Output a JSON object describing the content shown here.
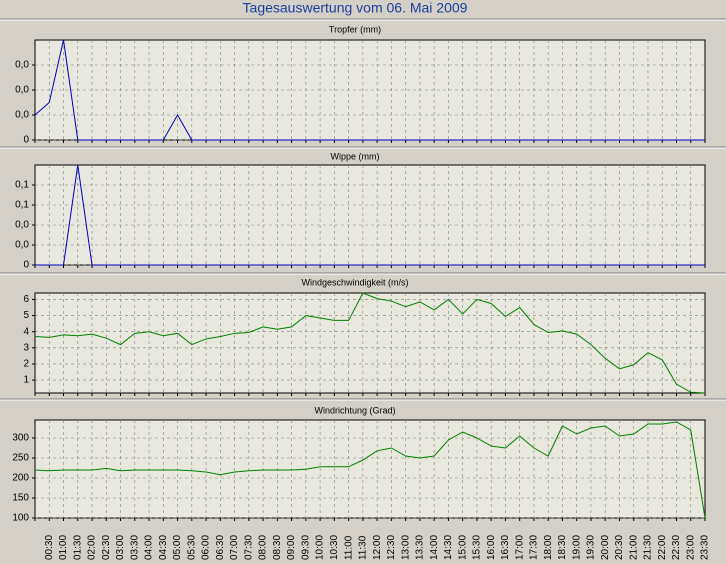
{
  "title": "Tagesauswertung vom 06. Mai 2009",
  "chart_data": [
    {
      "type": "line",
      "title": "Tropfer (mm)",
      "color": "#0000c0",
      "ylim": [
        0,
        0.04
      ],
      "yticks": [
        0,
        {
          "value": 0.01,
          "label": "0,0"
        },
        {
          "value": 0.02,
          "label": "0,0"
        },
        {
          "value": 0.03,
          "label": "0,0"
        }
      ],
      "grid": true,
      "values": [
        0.01,
        0.015,
        0.04,
        0,
        0,
        0,
        0,
        0,
        0,
        0,
        0.01,
        0,
        0,
        0,
        0,
        0,
        0,
        0,
        0,
        0,
        0,
        0,
        0,
        0,
        0,
        0,
        0,
        0,
        0,
        0,
        0,
        0,
        0,
        0,
        0,
        0,
        0,
        0,
        0,
        0,
        0,
        0,
        0,
        0,
        0,
        0,
        0,
        0
      ]
    },
    {
      "type": "line",
      "title": "Wippe (mm)",
      "color": "#0000c0",
      "ylim": [
        0,
        0.1
      ],
      "yticks": [
        0,
        {
          "value": 0.02,
          "label": "0,0"
        },
        {
          "value": 0.04,
          "label": "0,0"
        },
        {
          "value": 0.06,
          "label": "0,1"
        },
        {
          "value": 0.08,
          "label": "0,1"
        }
      ],
      "grid": true,
      "values": [
        0,
        0,
        0,
        0.1,
        0,
        0,
        0,
        0,
        0,
        0,
        0,
        0,
        0,
        0,
        0,
        0,
        0,
        0,
        0,
        0,
        0,
        0,
        0,
        0,
        0,
        0,
        0,
        0,
        0,
        0,
        0,
        0,
        0,
        0,
        0,
        0,
        0,
        0,
        0,
        0,
        0,
        0,
        0,
        0,
        0,
        0,
        0,
        0
      ]
    },
    {
      "type": "line",
      "title": "Windgeschwindigkeit (m/s)",
      "color": "#008000",
      "ylim": [
        0.2,
        6.4
      ],
      "yticks": [
        1,
        2,
        3,
        4,
        5,
        6
      ],
      "grid": true,
      "values": [
        3.7,
        3.65,
        3.8,
        3.75,
        3.85,
        3.6,
        3.2,
        3.9,
        4.0,
        3.75,
        3.9,
        3.2,
        3.55,
        3.7,
        3.9,
        3.95,
        4.3,
        4.15,
        4.3,
        5.0,
        4.85,
        4.7,
        4.7,
        6.4,
        6.05,
        5.9,
        5.55,
        5.85,
        5.35,
        6.0,
        5.1,
        6.0,
        5.75,
        4.95,
        5.5,
        4.45,
        3.95,
        4.05,
        3.85,
        3.2,
        2.35,
        1.7,
        1.95,
        2.7,
        2.25,
        0.75,
        0.25,
        0.2
      ]
    },
    {
      "type": "line",
      "title": "Windrichtung (Grad)",
      "color": "#008000",
      "ylim": [
        100,
        345
      ],
      "yticks": [
        100,
        150,
        200,
        250,
        300
      ],
      "grid": true,
      "categories": [
        null,
        "00:30",
        "01:00",
        "01:30",
        "02:00",
        "02:30",
        "03:00",
        "03:30",
        "04:00",
        "04:30",
        "05:00",
        "05:30",
        "06:00",
        "06:30",
        "07:00",
        "07:30",
        "08:00",
        "08:30",
        "09:00",
        "09:30",
        "10:00",
        "10:30",
        "11:00",
        "11:30",
        "12:00",
        "12:30",
        "13:00",
        "13:30",
        "14:00",
        "14:30",
        "15:00",
        "15:30",
        "16:00",
        "16:30",
        "17:00",
        "17:30",
        "18:00",
        "18:30",
        "19:00",
        "19:30",
        "20:00",
        "20:30",
        "21:00",
        "21:30",
        "22:00",
        "22:30",
        "23:00",
        "23:30"
      ],
      "values": [
        220,
        218,
        220,
        220,
        220,
        224,
        218,
        220,
        220,
        220,
        220,
        218,
        215,
        208,
        215,
        218,
        220,
        220,
        220,
        222,
        228,
        228,
        228,
        245,
        268,
        275,
        255,
        250,
        255,
        295,
        315,
        300,
        280,
        275,
        305,
        275,
        255,
        330,
        310,
        325,
        330,
        305,
        310,
        335,
        335,
        340,
        320,
        100
      ]
    }
  ]
}
